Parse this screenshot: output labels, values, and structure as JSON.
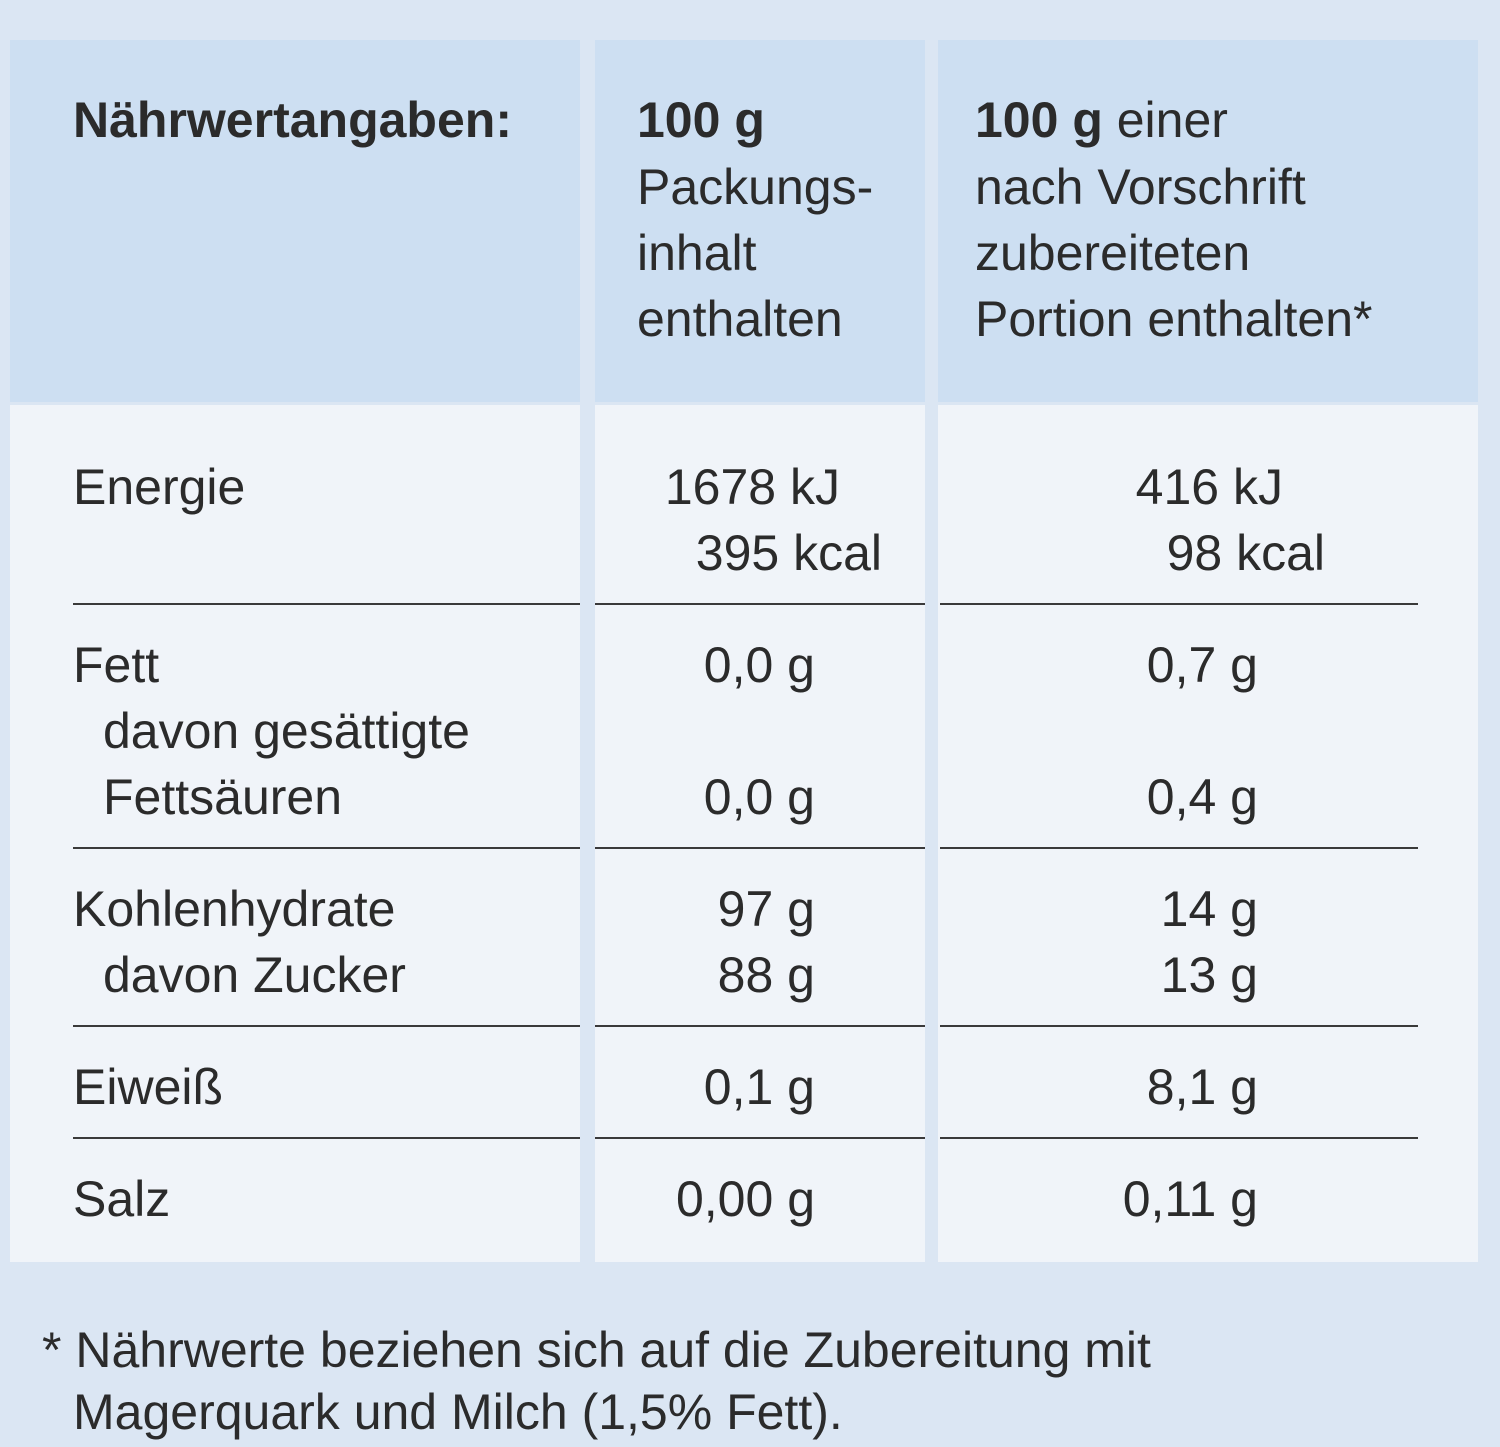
{
  "header": {
    "title": "Nährwertangaben:",
    "columns": [
      {
        "bold": "100 g",
        "lines": [
          "Packungs-",
          "inhalt",
          "enthalten"
        ]
      },
      {
        "bold": "100 g",
        "rest": " einer",
        "lines": [
          "nach Vorschrift",
          "zubereiteten",
          "Portion enthalten*"
        ]
      }
    ]
  },
  "groups": [
    [
      {
        "label": "Energie",
        "values": [
          "1678 kJ",
          "416 kJ"
        ]
      },
      {
        "values": [
          "395 kcal",
          "98 kcal"
        ]
      }
    ],
    [
      {
        "label": "Fett",
        "values": [
          "0,0 g",
          "0,7 g"
        ]
      },
      {
        "label": "davon gesättigte"
      },
      {
        "label": "Fettsäuren",
        "values": [
          "0,0 g",
          "0,4 g"
        ]
      }
    ],
    [
      {
        "label": "Kohlenhydrate",
        "values": [
          "97 g",
          "14 g"
        ]
      },
      {
        "label": "davon Zucker",
        "values": [
          "88 g",
          "13 g"
        ]
      }
    ],
    [
      {
        "label": "Eiweiß",
        "values": [
          "0,1 g",
          "8,1 g"
        ]
      }
    ],
    [
      {
        "label": "Salz",
        "values": [
          "0,00 g",
          "0,11 g"
        ]
      }
    ]
  ],
  "footnote": [
    "* Nährwerte beziehen sich auf die Zubereitung mit",
    "Magerquark und Milch (1,5% Fett)."
  ]
}
